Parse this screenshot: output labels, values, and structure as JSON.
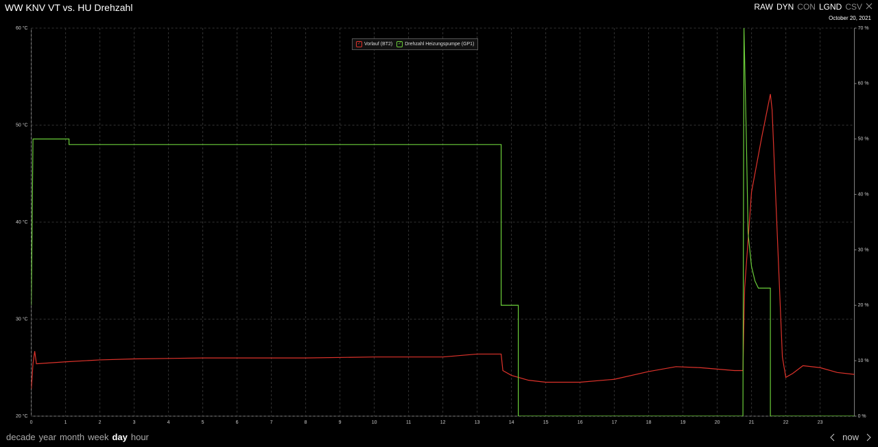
{
  "header": {
    "title": "WW KNV VT vs. HU Drehzahl",
    "date": "October 20, 2021",
    "controls": [
      {
        "label": "RAW",
        "active": true
      },
      {
        "label": "DYN",
        "active": true
      },
      {
        "label": "CON",
        "active": false
      },
      {
        "label": "LGND",
        "active": true
      },
      {
        "label": "CSV",
        "active": false
      }
    ]
  },
  "chart_data": {
    "type": "line",
    "xlim": [
      0,
      24
    ],
    "xticks": [
      0,
      1,
      2,
      3,
      4,
      5,
      6,
      7,
      8,
      9,
      10,
      11,
      12,
      13,
      14,
      15,
      16,
      17,
      18,
      19,
      20,
      21,
      22,
      23
    ],
    "ylim": [
      20,
      60
    ],
    "yticks": [
      {
        "value": 20,
        "label": "20 °C"
      },
      {
        "value": 30,
        "label": "30 °C"
      },
      {
        "value": 40,
        "label": "40 °C"
      },
      {
        "value": 50,
        "label": "50 °C"
      },
      {
        "value": 60,
        "label": "60 °C"
      }
    ],
    "y2lim": [
      0,
      70
    ],
    "y2ticks": [
      {
        "value": 0,
        "label": "0 %"
      },
      {
        "value": 10,
        "label": "10 %"
      },
      {
        "value": 20,
        "label": "20 %"
      },
      {
        "value": 30,
        "label": "30 %"
      },
      {
        "value": 40,
        "label": "40 %"
      },
      {
        "value": 50,
        "label": "50 %"
      },
      {
        "value": 60,
        "label": "60 %"
      },
      {
        "value": 70,
        "label": "70 %"
      }
    ],
    "grid": true,
    "series": [
      {
        "name": "Vorlauf (BT2)",
        "color": "#e0332b",
        "axis": "y",
        "x": [
          0,
          0.05,
          0.1,
          0.15,
          1,
          2,
          3,
          5,
          8,
          10,
          12,
          13,
          13.7,
          13.75,
          14,
          14.5,
          15,
          16,
          17,
          18,
          18.8,
          19.5,
          20.5,
          20.75,
          20.8,
          21.0,
          21.3,
          21.55,
          21.6,
          21.8,
          21.9,
          22.0,
          22.2,
          22.5,
          23,
          23.5,
          24
        ],
        "values": [
          22.8,
          25.4,
          26.7,
          25.4,
          25.6,
          25.8,
          25.9,
          26.0,
          26.0,
          26.1,
          26.1,
          26.4,
          26.4,
          24.7,
          24.2,
          23.7,
          23.5,
          23.5,
          23.8,
          24.6,
          25.1,
          25.0,
          24.7,
          24.7,
          33.2,
          43.1,
          48.8,
          53.2,
          51.6,
          34.6,
          26.1,
          24.0,
          24.4,
          25.2,
          25.0,
          24.5,
          24.3
        ]
      },
      {
        "name": "Drehzahl Heizungspumpe (GP1)",
        "color": "#6ccf3a",
        "axis": "y2",
        "x": [
          0,
          0.05,
          1.1,
          1.1,
          13.7,
          13.7,
          14.2,
          14.2,
          20.75,
          20.78,
          20.85,
          20.9,
          21.0,
          21.1,
          21.2,
          21.55,
          21.55,
          24
        ],
        "values": [
          20,
          50,
          50,
          49,
          49,
          20,
          20,
          0,
          0,
          70,
          50,
          33,
          27,
          24.4,
          23.1,
          23.1,
          0,
          0
        ]
      }
    ]
  },
  "footer": {
    "ranges": [
      {
        "label": "decade",
        "active": false
      },
      {
        "label": "year",
        "active": false
      },
      {
        "label": "month",
        "active": false
      },
      {
        "label": "week",
        "active": false
      },
      {
        "label": "day",
        "active": true
      },
      {
        "label": "hour",
        "active": false
      }
    ],
    "now": "now"
  }
}
